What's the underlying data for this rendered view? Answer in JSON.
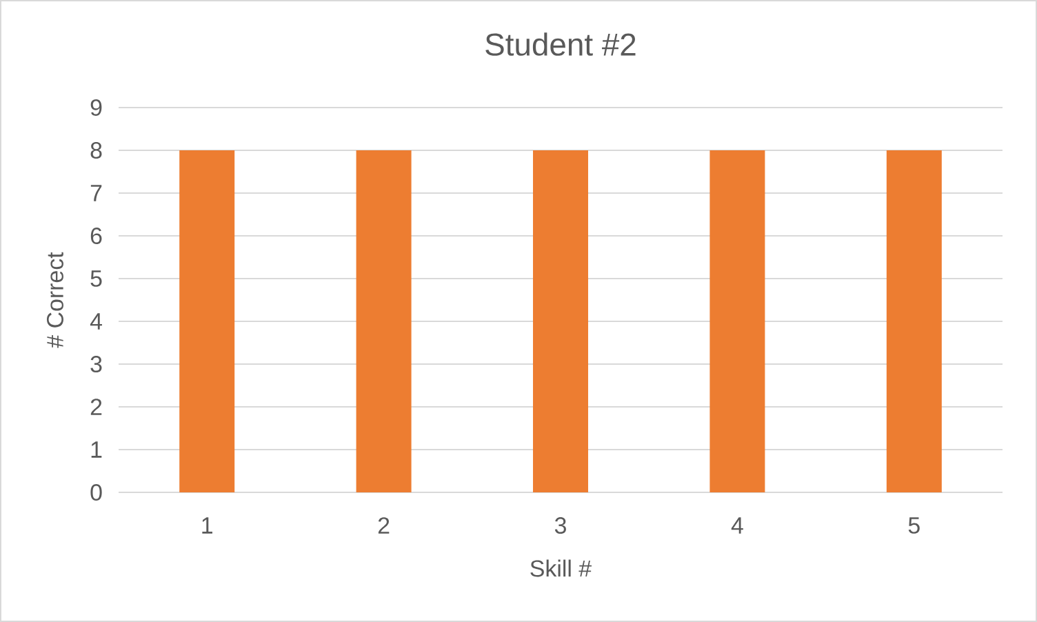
{
  "chart_data": {
    "type": "bar",
    "title": "Student #2",
    "xlabel": "Skill #",
    "ylabel": "# Correct",
    "categories": [
      "1",
      "2",
      "3",
      "4",
      "5"
    ],
    "values": [
      8,
      8,
      8,
      8,
      8
    ],
    "color": "#ed7d31",
    "ylim": [
      0,
      9
    ],
    "yticks": [
      0,
      1,
      2,
      3,
      4,
      5,
      6,
      7,
      8,
      9
    ],
    "grid": "y"
  }
}
